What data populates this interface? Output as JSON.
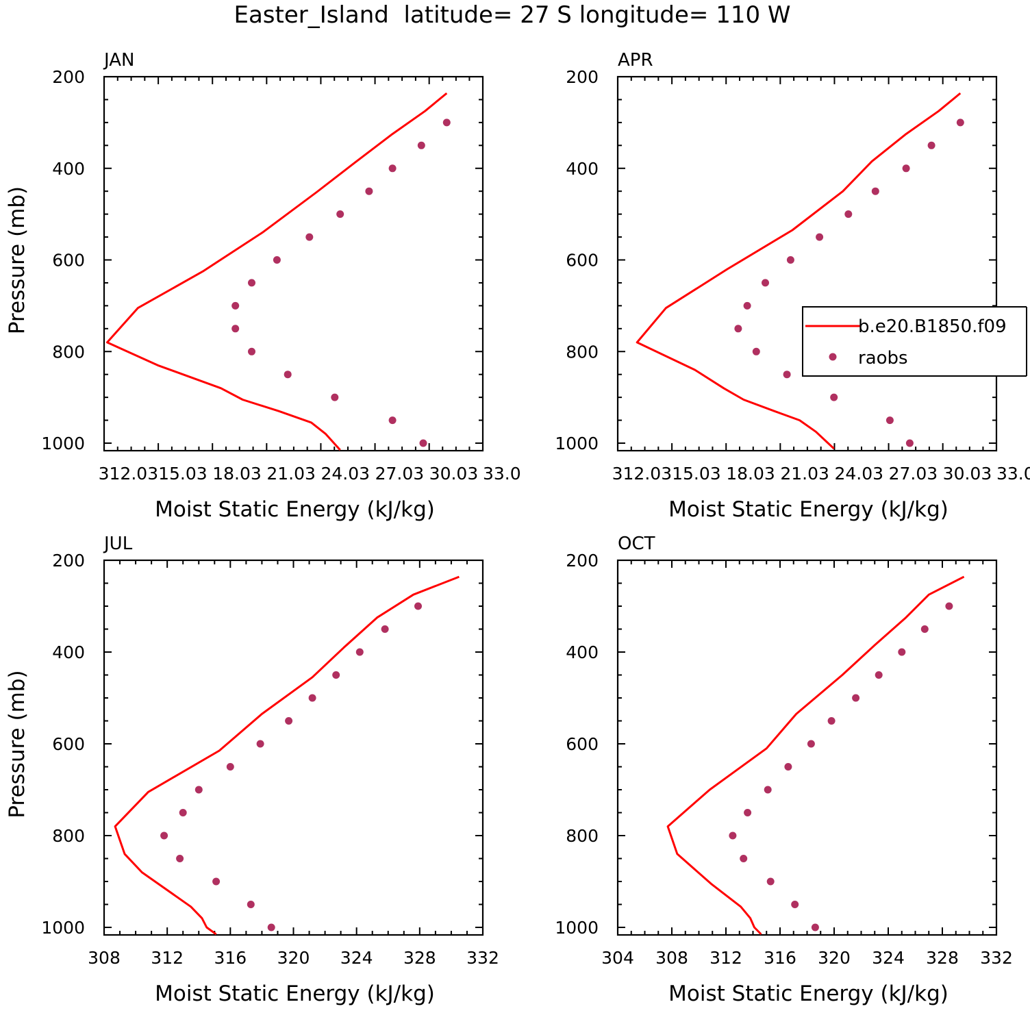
{
  "figure": {
    "title": "Easter_Island  latitude= 27 S longitude= 110 W"
  },
  "colors": {
    "model_line": "#ff0000",
    "raobs_marker": "#b03060",
    "axes": "#000000"
  },
  "legend": {
    "panel": "APR",
    "placement": "right-middle",
    "entries": [
      {
        "label": "b.e20.B1850.f09",
        "symbol": "line"
      },
      {
        "label": "raobs",
        "symbol": "dot"
      }
    ]
  },
  "chart_data": [
    {
      "type": "line",
      "panel_label": "JAN",
      "xlabel": "Moist Static Energy (kJ/kg)",
      "ylabel": "Pressure (mb)",
      "xlim": [
        312.03,
        333.0
      ],
      "ylim": [
        1000,
        200
      ],
      "x_ticks": [
        "312.03",
        "15.03",
        "18.03",
        "21.03",
        "24.03",
        "27.03",
        "30.03",
        "33.0"
      ],
      "x_tick_values": [
        312.03,
        315.03,
        318.03,
        321.03,
        324.03,
        327.03,
        330.03,
        333.0
      ],
      "y_ticks": [
        200,
        400,
        600,
        800,
        1000
      ],
      "series": [
        {
          "name": "b.e20.B1850.f09",
          "style": "line",
          "pressure": [
            236,
            275,
            325,
            388,
            452,
            540,
            625,
            705,
            780,
            830,
            880,
            905,
            930,
            955,
            980,
            1015
          ],
          "mse": [
            331.0,
            329.8,
            328.0,
            325.9,
            323.8,
            320.8,
            317.5,
            313.9,
            312.2,
            315.0,
            318.5,
            319.7,
            321.7,
            323.5,
            324.3,
            325.1
          ]
        },
        {
          "name": "raobs",
          "style": "markers",
          "pressure": [
            300,
            350,
            400,
            450,
            500,
            550,
            600,
            650,
            700,
            750,
            800,
            850,
            900,
            950,
            1000
          ],
          "mse": [
            331.0,
            329.6,
            328.0,
            326.7,
            325.1,
            323.4,
            321.6,
            320.2,
            319.3,
            319.3,
            320.2,
            322.2,
            324.8,
            328.0,
            329.7
          ]
        }
      ]
    },
    {
      "type": "line",
      "panel_label": "APR",
      "xlabel": "Moist Static Energy (kJ/kg)",
      "ylabel": "",
      "xlim": [
        312.03,
        333.0
      ],
      "ylim": [
        1000,
        200
      ],
      "x_ticks": [
        "312.03",
        "15.03",
        "18.03",
        "21.03",
        "24.03",
        "27.03",
        "30.03",
        "33.0"
      ],
      "x_tick_values": [
        312.03,
        315.03,
        318.03,
        321.03,
        324.03,
        327.03,
        330.03,
        333.0
      ],
      "y_ticks": [
        200,
        400,
        600,
        800,
        1000
      ],
      "series": [
        {
          "name": "b.e20.B1850.f09",
          "style": "line",
          "pressure": [
            236,
            275,
            325,
            385,
            450,
            535,
            620,
            705,
            780,
            840,
            880,
            905,
            930,
            950,
            975,
            1012
          ],
          "mse": [
            331.0,
            329.8,
            328.0,
            326.1,
            324.5,
            321.7,
            318.1,
            314.7,
            313.1,
            316.3,
            317.9,
            319.0,
            320.7,
            322.1,
            323.0,
            324.0
          ]
        },
        {
          "name": "raobs",
          "style": "markers",
          "pressure": [
            300,
            350,
            400,
            450,
            500,
            550,
            600,
            650,
            700,
            750,
            800,
            850,
            900,
            950,
            1000
          ],
          "mse": [
            331.0,
            329.4,
            328.0,
            326.3,
            324.8,
            323.2,
            321.6,
            320.2,
            319.2,
            318.7,
            319.7,
            321.4,
            324.0,
            327.1,
            328.2
          ]
        }
      ]
    },
    {
      "type": "line",
      "panel_label": "JUL",
      "xlabel": "Moist Static Energy (kJ/kg)",
      "ylabel": "Pressure (mb)",
      "xlim": [
        308,
        332
      ],
      "ylim": [
        1000,
        200
      ],
      "x_ticks": [
        "308",
        "312",
        "316",
        "320",
        "324",
        "328",
        "332"
      ],
      "x_tick_values": [
        308,
        312,
        316,
        320,
        324,
        328,
        332
      ],
      "y_ticks": [
        200,
        400,
        600,
        800,
        1000
      ],
      "series": [
        {
          "name": "b.e20.B1850.f09",
          "style": "line",
          "pressure": [
            236,
            275,
            325,
            390,
            455,
            535,
            615,
            705,
            780,
            840,
            880,
            955,
            980,
            1000,
            1015
          ],
          "mse": [
            330.5,
            327.6,
            325.3,
            323.2,
            321.2,
            318.0,
            315.3,
            310.8,
            308.7,
            309.3,
            310.4,
            313.5,
            314.2,
            314.5,
            315.1
          ]
        },
        {
          "name": "raobs",
          "style": "markers",
          "pressure": [
            300,
            350,
            400,
            450,
            500,
            550,
            600,
            650,
            700,
            750,
            800,
            850,
            900,
            950,
            1000
          ],
          "mse": [
            327.9,
            325.8,
            324.2,
            322.7,
            321.2,
            319.7,
            317.9,
            316.0,
            314.0,
            313.0,
            311.8,
            312.8,
            315.1,
            317.3,
            318.6
          ]
        }
      ]
    },
    {
      "type": "line",
      "panel_label": "OCT",
      "xlabel": "Moist Static Energy (kJ/kg)",
      "ylabel": "",
      "xlim": [
        304,
        332
      ],
      "ylim": [
        1000,
        200
      ],
      "x_ticks": [
        "304",
        "308",
        "312",
        "316",
        "320",
        "324",
        "328",
        "332"
      ],
      "x_tick_values": [
        304,
        308,
        312,
        316,
        320,
        324,
        328,
        332
      ],
      "y_ticks": [
        200,
        400,
        600,
        800,
        1000
      ],
      "series": [
        {
          "name": "b.e20.B1850.f09",
          "style": "line",
          "pressure": [
            236,
            275,
            325,
            385,
            450,
            535,
            610,
            700,
            780,
            840,
            905,
            955,
            980,
            1000,
            1015
          ],
          "mse": [
            329.6,
            327.0,
            325.3,
            323.0,
            320.6,
            317.2,
            315.0,
            310.8,
            307.7,
            308.4,
            310.9,
            313.1,
            313.8,
            314.1,
            314.6
          ]
        },
        {
          "name": "raobs",
          "style": "markers",
          "pressure": [
            300,
            350,
            400,
            450,
            500,
            550,
            600,
            650,
            700,
            750,
            800,
            850,
            900,
            950,
            1000
          ],
          "mse": [
            328.5,
            326.7,
            325.0,
            323.3,
            321.6,
            319.8,
            318.3,
            316.6,
            315.1,
            313.6,
            312.5,
            313.3,
            315.3,
            317.1,
            318.6
          ]
        }
      ]
    }
  ]
}
